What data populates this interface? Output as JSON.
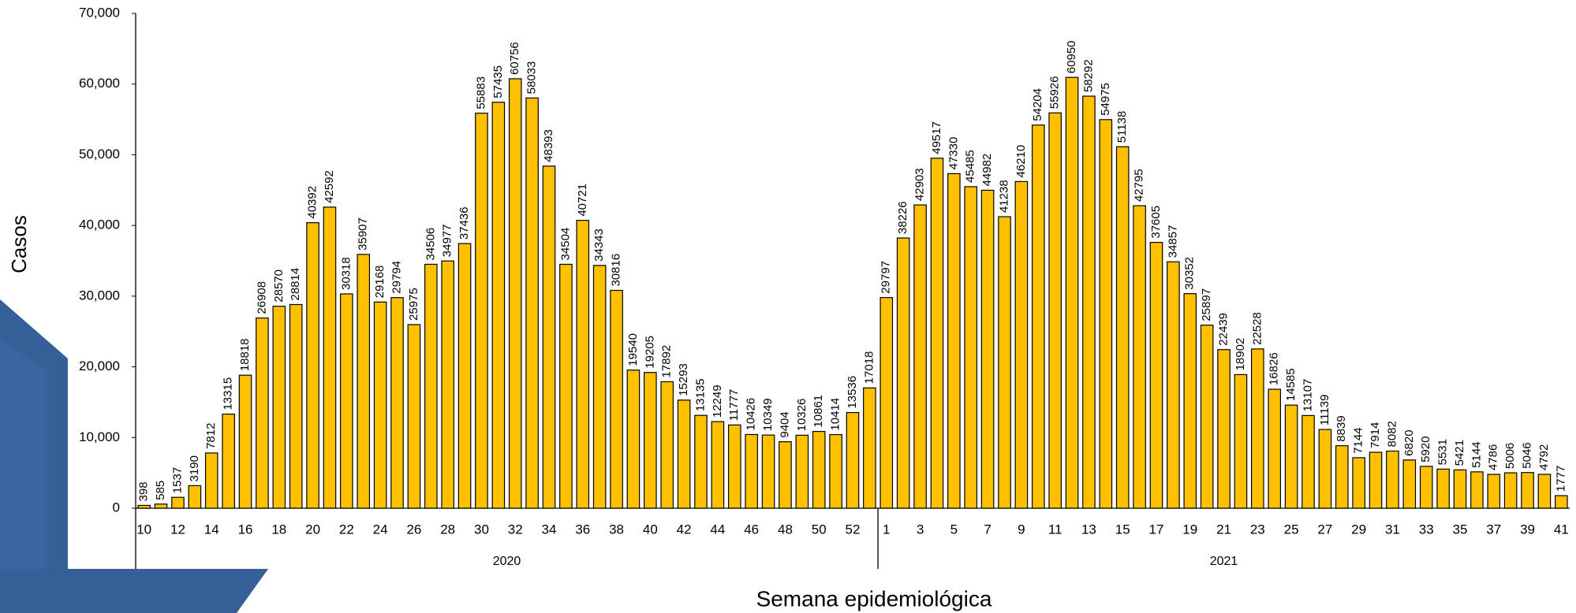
{
  "chart_data": {
    "type": "bar",
    "y_label": "Casos",
    "x_label": "Semana epidemiológica",
    "color": "#FFC000",
    "ylim": [
      0,
      70000
    ],
    "yticks": [
      0,
      {
        "value": 10000,
        "label": "10,000"
      },
      {
        "value": 20000,
        "label": "20,000"
      },
      {
        "value": 30000,
        "label": "30,000"
      },
      {
        "value": 40000,
        "label": "40,000"
      },
      {
        "value": 50000,
        "label": "50,000"
      },
      {
        "value": 60000,
        "label": "60,000"
      },
      {
        "value": 70000,
        "label": "70,000"
      }
    ],
    "groups": [
      {
        "label": "2020",
        "categories": [
          "10",
          null,
          "12",
          null,
          "14",
          null,
          "16",
          null,
          "18",
          null,
          "20",
          null,
          "22",
          null,
          "24",
          null,
          "26",
          null,
          "28",
          null,
          "30",
          null,
          "32",
          null,
          "34",
          null,
          "36",
          null,
          "38",
          null,
          "40",
          null,
          "42",
          null,
          "44",
          null,
          "46",
          null,
          "48",
          null,
          "50",
          null,
          "52",
          null
        ],
        "values": [
          398,
          585,
          1537,
          3190,
          7812,
          13315,
          18818,
          26908,
          28570,
          28814,
          40392,
          42592,
          30318,
          35907,
          29168,
          29794,
          25975,
          34506,
          34977,
          37436,
          55883,
          57435,
          60756,
          58033,
          48393,
          34504,
          40721,
          34343,
          30816,
          19540,
          19205,
          17892,
          15293,
          13135,
          12249,
          11777,
          10426,
          10349,
          9404,
          10326,
          10861,
          10414,
          13536,
          17018
        ]
      },
      {
        "label": "2021",
        "categories": [
          "1",
          null,
          "3",
          null,
          "5",
          null,
          "7",
          null,
          "9",
          null,
          "11",
          null,
          "13",
          null,
          "15",
          null,
          "17",
          null,
          "19",
          null,
          "21",
          null,
          "23",
          null,
          "25",
          null,
          "27",
          null,
          "29",
          null,
          "31",
          null,
          "33",
          null,
          "35",
          null,
          "37",
          null,
          "39",
          null,
          "41"
        ],
        "values": [
          29797,
          38226,
          42903,
          49517,
          47330,
          45485,
          44982,
          41238,
          46210,
          54204,
          55926,
          60950,
          58292,
          54975,
          51138,
          42795,
          37605,
          34857,
          30352,
          25897,
          22439,
          18902,
          22528,
          16826,
          14585,
          13107,
          11139,
          8839,
          7144,
          7914,
          8082,
          6820,
          5920,
          5531,
          5421,
          5144,
          4786,
          5006,
          5046,
          4792,
          1777
        ]
      }
    ]
  }
}
